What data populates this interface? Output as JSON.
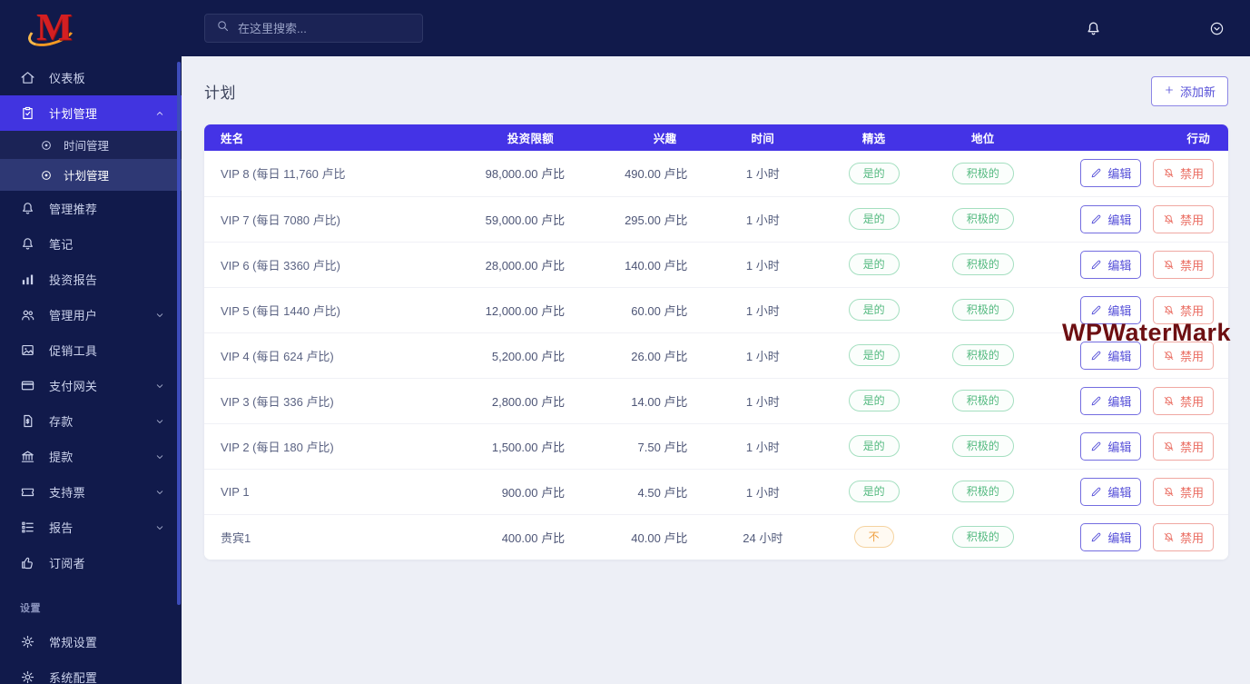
{
  "colors": {
    "accent": "#4433e6",
    "sidebar_bg": "#111a4b",
    "green": "#53b97f",
    "orange": "#efa041",
    "red": "#ea6d62",
    "logo_red": "#d41f22",
    "logo_orange": "#f59a23"
  },
  "brand": {
    "logo_letter": "M"
  },
  "topbar": {
    "search": {
      "placeholder": "在这里搜索...",
      "icon": "search-icon"
    },
    "icons": [
      "bell-icon",
      "circle-chevron-down-icon"
    ]
  },
  "sidebar": {
    "items": [
      {
        "key": "dashboard",
        "icon": "home",
        "label": "仪表板"
      },
      {
        "key": "plan-management",
        "icon": "clipboard",
        "label": "计划管理",
        "active": true,
        "chevron": "up",
        "children": [
          {
            "key": "time-management",
            "icon": "radio",
            "label": "时间管理"
          },
          {
            "key": "plan-management-sub",
            "icon": "radio",
            "label": "计划管理",
            "active": true
          }
        ]
      },
      {
        "key": "manage-referral",
        "icon": "bell",
        "label": "管理推荐"
      },
      {
        "key": "notes",
        "icon": "bell",
        "label": "笔记"
      },
      {
        "key": "investment-report",
        "icon": "chart",
        "label": "投资报告"
      },
      {
        "key": "manage-users",
        "icon": "users",
        "label": "管理用户",
        "chevron": "down"
      },
      {
        "key": "promotion-tools",
        "icon": "image",
        "label": "促销工具"
      },
      {
        "key": "payment-gateway",
        "icon": "card",
        "label": "支付网关",
        "chevron": "down"
      },
      {
        "key": "deposits",
        "icon": "file-dollar",
        "label": "存款",
        "chevron": "down"
      },
      {
        "key": "withdrawals",
        "icon": "bank",
        "label": "提款",
        "chevron": "down"
      },
      {
        "key": "support-ticket",
        "icon": "ticket",
        "label": "支持票",
        "chevron": "down"
      },
      {
        "key": "reports",
        "icon": "list",
        "label": "报告",
        "chevron": "down"
      },
      {
        "key": "subscribers",
        "icon": "thumb",
        "label": "订阅者"
      }
    ],
    "section_label": "设置",
    "settings_items": [
      {
        "key": "general-settings",
        "icon": "gear",
        "label": "常规设置"
      },
      {
        "key": "system-configuration",
        "icon": "gear",
        "label": "系统配置"
      }
    ]
  },
  "page": {
    "title": "计划",
    "add_button_label": "添加新"
  },
  "table": {
    "headers": [
      "姓名",
      "投资限额",
      "兴趣",
      "时间",
      "精选",
      "地位",
      "行动"
    ],
    "edit_label": "编辑",
    "disable_label": "禁用",
    "rows": [
      {
        "name": "VIP 8  (每日 11,760 卢比",
        "investment": "98,000.00 卢比",
        "interest": "490.00 卢比",
        "time": "1 小时",
        "featured": "是的",
        "featured_type": "yes",
        "status": "积极的"
      },
      {
        "name": "VIP 7  (每日 7080 卢比)",
        "investment": "59,000.00 卢比",
        "interest": "295.00 卢比",
        "time": "1 小时",
        "featured": "是的",
        "featured_type": "yes",
        "status": "积极的"
      },
      {
        "name": "VIP 6  (每日 3360 卢比)",
        "investment": "28,000.00 卢比",
        "interest": "140.00 卢比",
        "time": "1 小时",
        "featured": "是的",
        "featured_type": "yes",
        "status": "积极的"
      },
      {
        "name": "VIP 5  (每日 1440 卢比)",
        "investment": "12,000.00 卢比",
        "interest": "60.00 卢比",
        "time": "1 小时",
        "featured": "是的",
        "featured_type": "yes",
        "status": "积极的"
      },
      {
        "name": "VIP 4  (每日 624 卢比)",
        "investment": "5,200.00 卢比",
        "interest": "26.00 卢比",
        "time": "1 小时",
        "featured": "是的",
        "featured_type": "yes",
        "status": "积极的"
      },
      {
        "name": "VIP 3  (每日 336 卢比)",
        "investment": "2,800.00 卢比",
        "interest": "14.00 卢比",
        "time": "1 小时",
        "featured": "是的",
        "featured_type": "yes",
        "status": "积极的"
      },
      {
        "name": "VIP 2  (每日 180 卢比)",
        "investment": "1,500.00 卢比",
        "interest": "7.50 卢比",
        "time": "1 小时",
        "featured": "是的",
        "featured_type": "yes",
        "status": "积极的"
      },
      {
        "name": "VIP 1",
        "investment": "900.00 卢比",
        "interest": "4.50 卢比",
        "time": "1 小时",
        "featured": "是的",
        "featured_type": "yes",
        "status": "积极的"
      },
      {
        "name": "贵宾1",
        "investment": "400.00 卢比",
        "interest": "40.00 卢比",
        "time": "24 小时",
        "featured": "不",
        "featured_type": "no",
        "status": "积极的"
      }
    ]
  },
  "watermark": "WPWaterMark"
}
